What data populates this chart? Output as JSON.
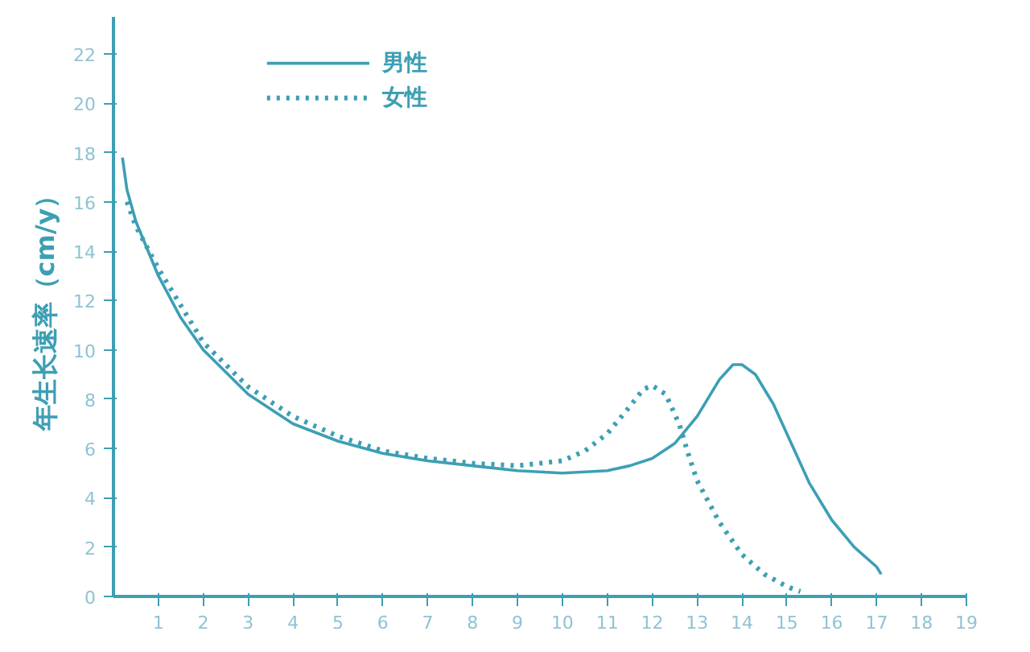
{
  "chart_data": {
    "type": "line",
    "ylabel": "年生长速率（cm/y）",
    "xlim": [
      0,
      19
    ],
    "ylim": [
      0,
      23.5
    ],
    "xticks": [
      1,
      2,
      3,
      4,
      5,
      6,
      7,
      8,
      9,
      10,
      11,
      12,
      13,
      14,
      15,
      16,
      17,
      18,
      19
    ],
    "yticks": [
      0,
      2,
      4,
      6,
      8,
      10,
      12,
      14,
      16,
      18,
      20,
      22
    ],
    "grid": false,
    "legend": "top left",
    "marker": "none",
    "series": [
      {
        "name": "男性",
        "color": "#3d9fb4",
        "line_style": "solid",
        "x": [
          0.2,
          0.3,
          0.5,
          1,
          1.5,
          2,
          3,
          4,
          5,
          6,
          7,
          8,
          9,
          10,
          11,
          11.5,
          12,
          12.5,
          13,
          13.5,
          13.8,
          14,
          14.3,
          14.7,
          15,
          15.5,
          16,
          16.5,
          17,
          17.1
        ],
        "values": [
          17.8,
          16.5,
          15.2,
          13.0,
          11.3,
          10.0,
          8.2,
          7.0,
          6.3,
          5.8,
          5.5,
          5.3,
          5.1,
          5.0,
          5.1,
          5.3,
          5.6,
          6.2,
          7.3,
          8.8,
          9.4,
          9.4,
          9.0,
          7.8,
          6.6,
          4.6,
          3.1,
          2.0,
          1.2,
          0.9
        ]
      },
      {
        "name": "女性",
        "color": "#3d9fb4",
        "line_style": "dotted",
        "x": [
          0.3,
          0.5,
          1,
          2,
          3,
          4,
          5,
          6,
          7,
          8,
          9,
          10,
          10.5,
          11,
          11.5,
          11.8,
          12,
          12.3,
          12.6,
          12.8,
          13,
          13.5,
          14,
          14.5,
          15,
          15.3
        ],
        "values": [
          16.0,
          15.0,
          13.3,
          10.3,
          8.5,
          7.3,
          6.5,
          5.9,
          5.6,
          5.4,
          5.3,
          5.5,
          5.9,
          6.6,
          7.7,
          8.4,
          8.55,
          8.2,
          7.0,
          5.8,
          4.7,
          3.0,
          1.7,
          0.9,
          0.4,
          0.2
        ]
      }
    ]
  }
}
